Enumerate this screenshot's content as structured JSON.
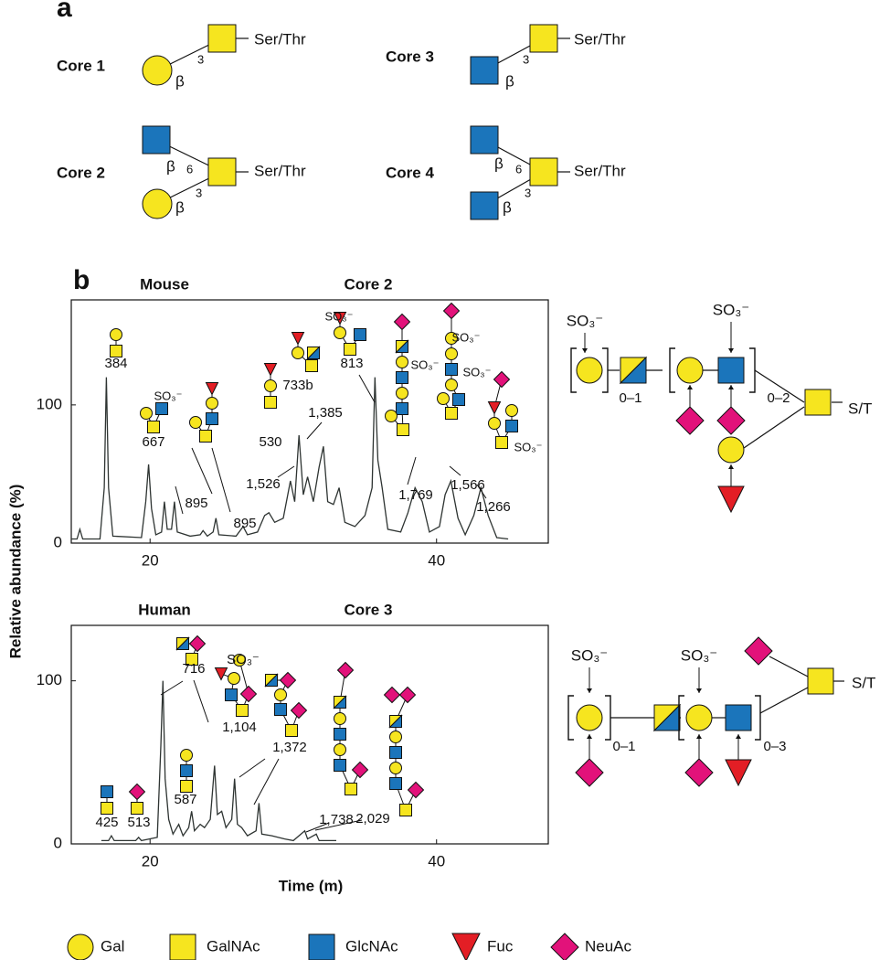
{
  "panel_a": {
    "label": "a",
    "cores": [
      {
        "name": "Core 1",
        "site": "Ser/Thr",
        "links": [
          "β",
          "3"
        ]
      },
      {
        "name": "Core 3",
        "site": "Ser/Thr",
        "links": [
          "β",
          "3"
        ]
      },
      {
        "name": "Core 2",
        "site": "Ser/Thr",
        "links": [
          "β",
          "6",
          "β",
          "3"
        ]
      },
      {
        "name": "Core 4",
        "site": "Ser/Thr",
        "links": [
          "β",
          "6",
          "β",
          "3"
        ]
      }
    ]
  },
  "panel_b_label": "b",
  "chart_data": [
    {
      "type": "line",
      "title": "Mouse",
      "subtitle": "Core 2",
      "ylabel": "Relative abundance (%)",
      "x": [
        14.5,
        14.9,
        15.1,
        15.3,
        16.5,
        16.8,
        16.95,
        17.1,
        17.4,
        19.4,
        19.7,
        19.9,
        20.1,
        20.4,
        20.8,
        21.0,
        21.2,
        21.5,
        21.7,
        21.9,
        22.8,
        23.5,
        23.7,
        24.0,
        24.4,
        24.6,
        24.8,
        26.0,
        26.5,
        26.8,
        27.5,
        28.0,
        28.3,
        28.7,
        29.3,
        29.8,
        30.1,
        30.4,
        30.7,
        31.0,
        31.4,
        31.8,
        32.1,
        32.4,
        32.8,
        33.2,
        33.6,
        34.3,
        35.0,
        35.5,
        35.7,
        35.9,
        36.2,
        36.6,
        37.5,
        38.0,
        38.5,
        39.0,
        39.5,
        40.2,
        40.6,
        41.0,
        41.5,
        42.0,
        42.6,
        43.1,
        43.6,
        44.2,
        45.0
      ],
      "series": [
        {
          "color": "#2e3432",
          "values": [
            3,
            3,
            10,
            3,
            3,
            40,
            120,
            40,
            5,
            4,
            30,
            57,
            25,
            6,
            8,
            30,
            10,
            10,
            30,
            8,
            5,
            6,
            9,
            5,
            8,
            18,
            6,
            5,
            12,
            6,
            8,
            20,
            22,
            15,
            18,
            45,
            30,
            78,
            35,
            48,
            30,
            55,
            70,
            30,
            28,
            40,
            15,
            12,
            20,
            40,
            120,
            60,
            40,
            10,
            8,
            22,
            40,
            30,
            8,
            12,
            35,
            45,
            18,
            6,
            20,
            40,
            20,
            4,
            3
          ]
        }
      ],
      "xlim": [
        14.5,
        47.8
      ],
      "xticks": [
        20,
        40
      ],
      "ylim": [
        0,
        176
      ],
      "yticks": [
        0,
        100
      ],
      "annotations": [
        "384",
        "667",
        "895",
        "895",
        "530",
        "733b",
        "1,385",
        "1,526",
        "813",
        "1,769",
        "1,566",
        "1,266",
        "SO₃⁻",
        "SO₃⁻",
        "SO₃⁻",
        "SO₃⁻",
        "SO₃⁻",
        "SO₃⁻"
      ]
    },
    {
      "type": "line",
      "title": "Human",
      "subtitle": "Core 3",
      "xlabel": "Time (m)",
      "x": [
        16.6,
        17.1,
        17.3,
        17.5,
        19.0,
        19.2,
        19.4,
        20.5,
        20.75,
        20.9,
        21.05,
        21.3,
        21.6,
        22.0,
        22.3,
        22.7,
        22.9,
        23.1,
        23.5,
        23.8,
        24.2,
        24.5,
        24.7,
        25.0,
        25.3,
        25.7,
        25.9,
        26.1,
        26.4,
        26.8,
        27.4,
        27.6,
        27.8,
        28.5,
        29.4,
        30.0,
        30.8,
        31.0,
        31.6,
        31.8,
        33.0
      ],
      "series": [
        {
          "color": "#2e3432",
          "values": [
            2,
            2,
            5,
            2,
            2,
            4,
            2,
            4,
            60,
            100,
            40,
            15,
            6,
            12,
            5,
            10,
            20,
            8,
            12,
            10,
            15,
            48,
            18,
            20,
            10,
            15,
            40,
            12,
            10,
            5,
            8,
            25,
            6,
            5,
            3,
            2,
            8,
            3,
            6,
            2,
            2
          ]
        }
      ],
      "xlim": [
        14.5,
        47.8
      ],
      "xticks": [
        20,
        40
      ],
      "ylim": [
        0,
        134
      ],
      "yticks": [
        0,
        100
      ],
      "annotations": [
        "716",
        "425",
        "513",
        "587",
        "1,104",
        "1,372",
        "1,738",
        "2,029",
        "SO₃⁻"
      ]
    }
  ],
  "schematics": {
    "mouse": [
      "SO₃⁻",
      "0–1",
      "SO₃⁻",
      "0–2",
      "S/T"
    ],
    "human": [
      "SO₃⁻",
      "SO₃⁻",
      "0–1",
      "0–3",
      "S/T"
    ]
  },
  "symbol_key": [
    "Gal",
    "GalNAc",
    "GlcNAc",
    "Fuc",
    "NeuAc"
  ]
}
